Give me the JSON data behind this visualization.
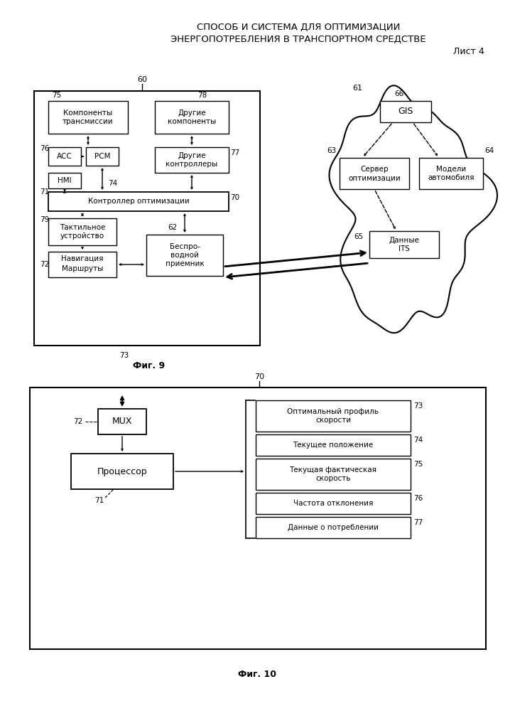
{
  "title_line1": "СПОСОБ И СИСТЕМА ДЛЯ ОПТИМИЗАЦИИ",
  "title_line2": "ЭНЕРГОПОТРЕБЛЕНИЯ В ТРАНСПОРТНОМ СРЕДСТВЕ",
  "title_line3": "Лист 4",
  "fig9_label": "Фиг. 9",
  "fig10_label": "Фиг. 10",
  "bg_color": "#ffffff"
}
